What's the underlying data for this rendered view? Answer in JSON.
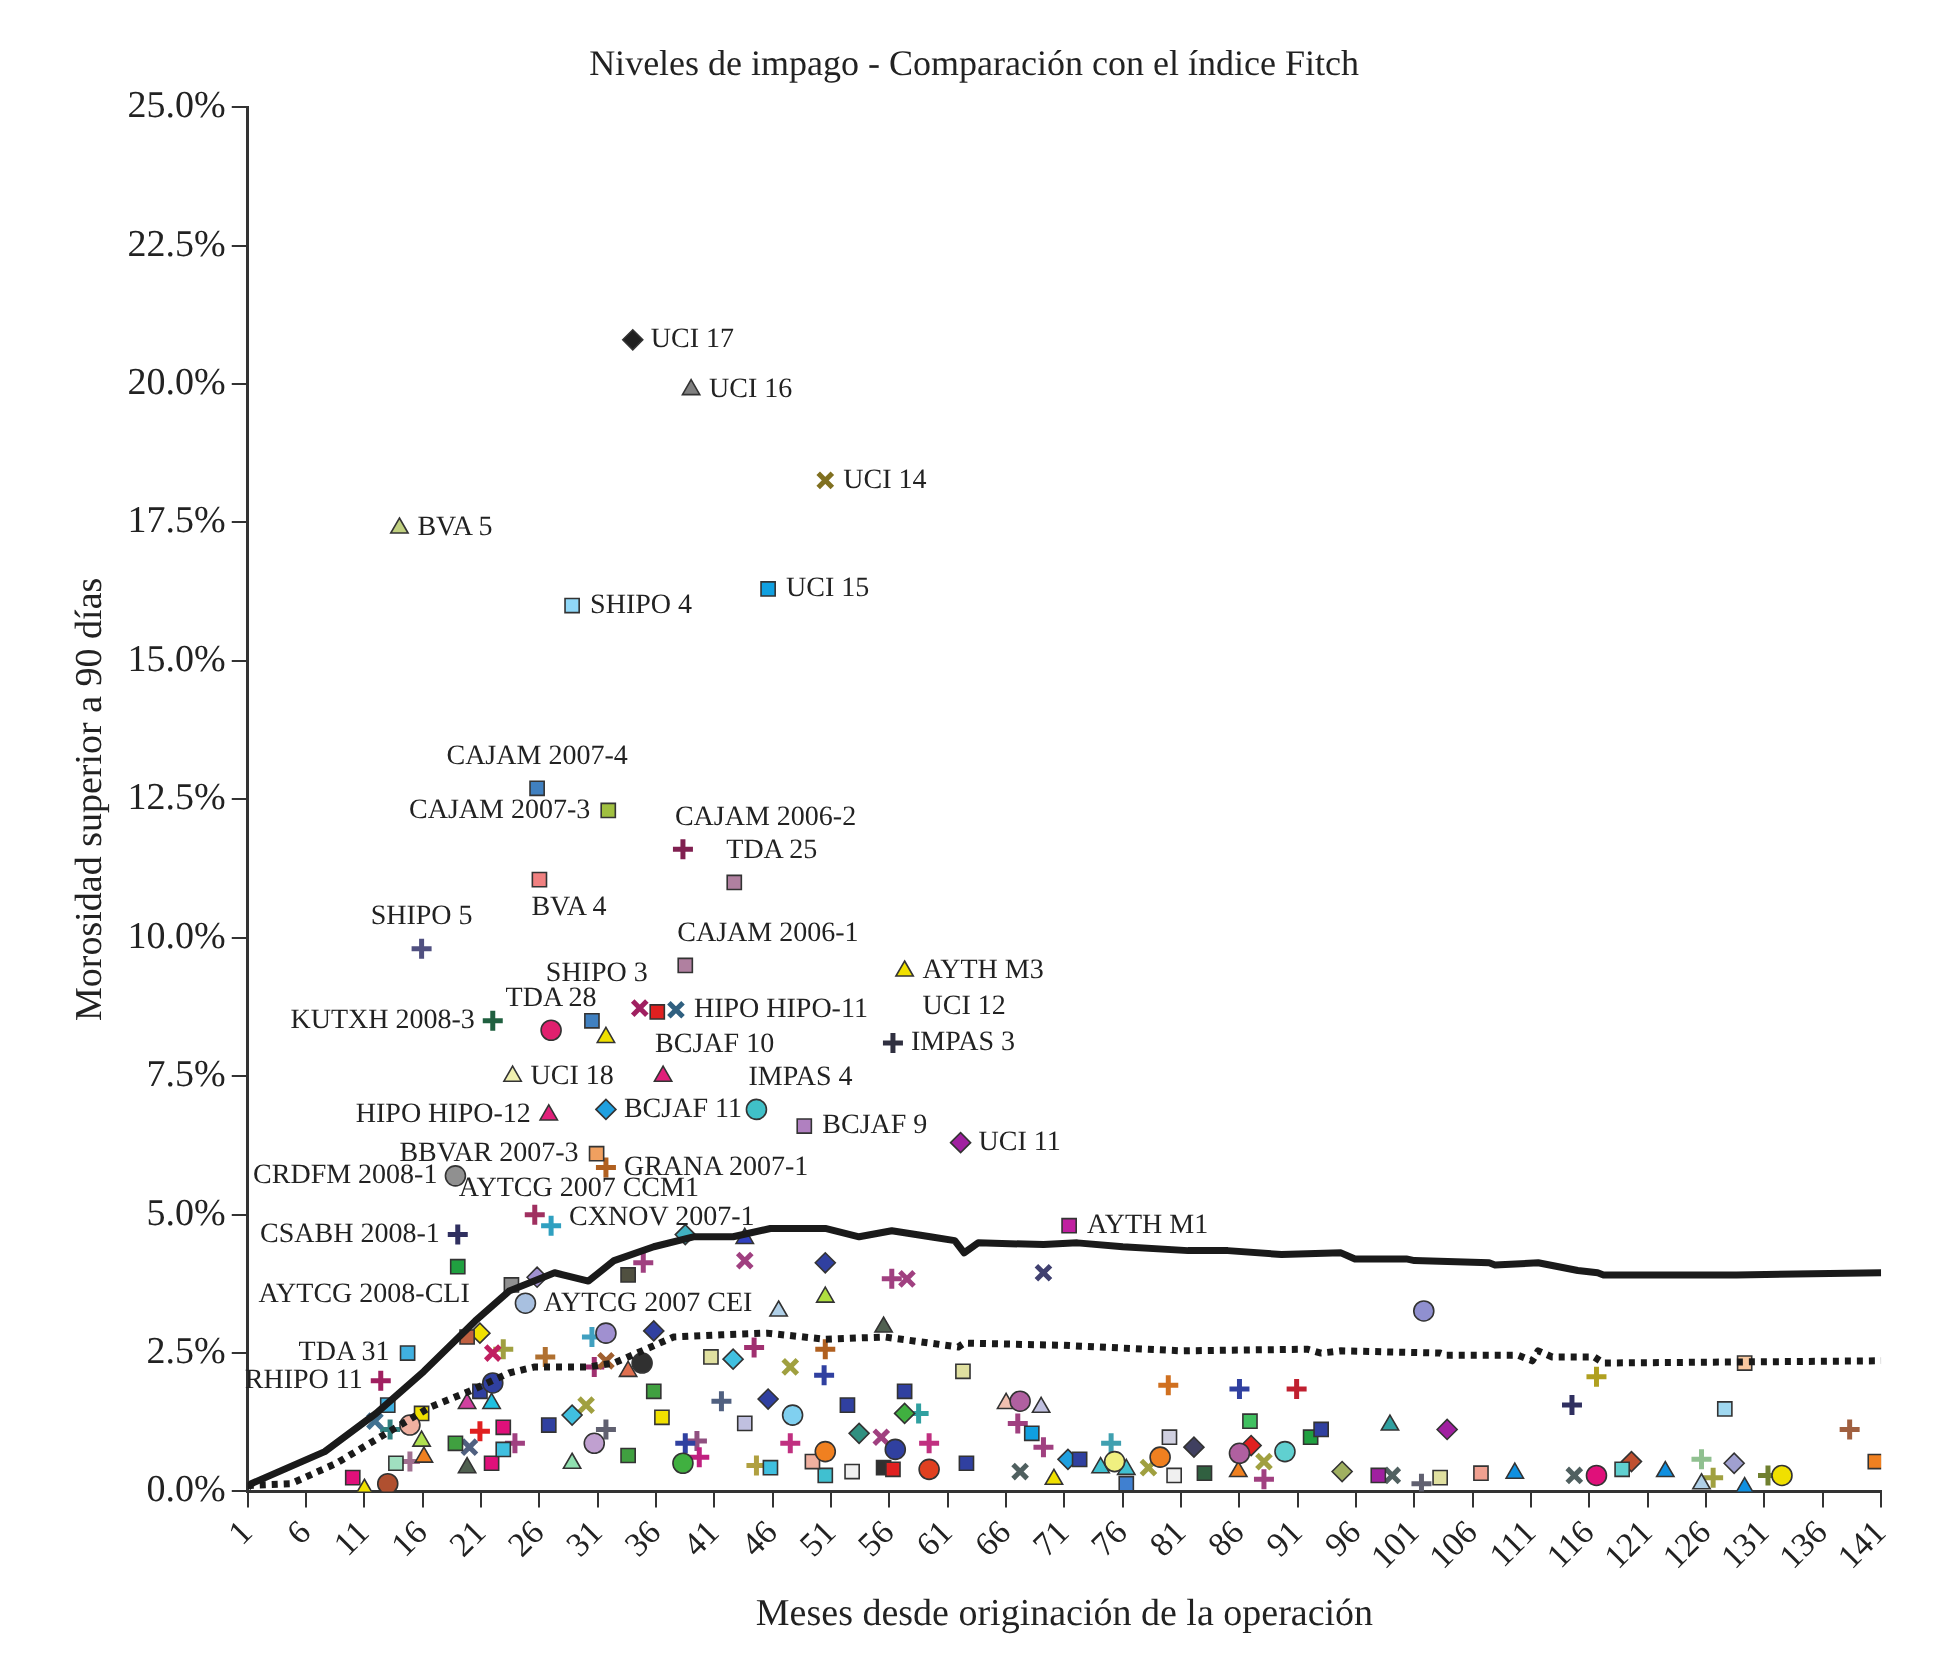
{
  "chart_data": {
    "type": "scatter",
    "title": "Niveles de impago - Comparación con el índice Fitch",
    "xlabel": "Meses desde originación de la operación",
    "ylabel": "Morosidad superior a 90 días",
    "xlim": [
      1,
      141
    ],
    "xticks": [
      1,
      6,
      11,
      16,
      21,
      26,
      31,
      36,
      41,
      46,
      51,
      56,
      61,
      66,
      71,
      76,
      81,
      86,
      91,
      96,
      101,
      106,
      111,
      116,
      121,
      126,
      131,
      136,
      141
    ],
    "ylim": [
      0,
      25
    ],
    "yticks": [
      {
        "value": 0,
        "label": "0.0%"
      },
      {
        "value": 2.5,
        "label": "2.5%"
      },
      {
        "value": 5,
        "label": "5.0%"
      },
      {
        "value": 7.5,
        "label": "7.5%"
      },
      {
        "value": 10,
        "label": "10.0%"
      },
      {
        "value": 12.5,
        "label": "12.5%"
      },
      {
        "value": 15,
        "label": "15.0%"
      },
      {
        "value": 17.5,
        "label": "17.5%"
      },
      {
        "value": 20,
        "label": "20.0%"
      },
      {
        "value": 22.5,
        "label": "22.5%"
      },
      {
        "value": 25,
        "label": "25.0%"
      }
    ],
    "grid": false,
    "legend": false,
    "series": [
      {
        "type": "line",
        "color": "#1a1a1a",
        "marker": "none",
        "line_style": "solid",
        "x": [
          1,
          1.3,
          7.6,
          12,
          16.1,
          20.5,
          23.4,
          27.3,
          30.2,
          32.4,
          35.8,
          39.2,
          42.6,
          45.8,
          50.5,
          53.4,
          56.2,
          59.5,
          61.6,
          62.4,
          63.6,
          69.2,
          72.1,
          76,
          81.6,
          85,
          89.6,
          94.7,
          95.9,
          100.3,
          101,
          107.4,
          107.9,
          111.6,
          115,
          116.7,
          117.2,
          128.6,
          141
        ],
        "values": [
          0.07,
          0.14,
          0.72,
          1.41,
          2.17,
          3.08,
          3.62,
          3.95,
          3.8,
          4.17,
          4.42,
          4.6,
          4.6,
          4.75,
          4.75,
          4.6,
          4.71,
          4.6,
          4.53,
          4.31,
          4.49,
          4.46,
          4.49,
          4.42,
          4.35,
          4.35,
          4.28,
          4.31,
          4.2,
          4.2,
          4.17,
          4.13,
          4.09,
          4.13,
          3.99,
          3.95,
          3.91,
          3.91,
          3.95
        ]
      },
      {
        "type": "line",
        "color": "#1a1a1a",
        "marker": "none",
        "line_style": "dotted",
        "x": [
          1,
          4.7,
          8.6,
          13.2,
          16.6,
          20,
          23.4,
          25.6,
          30.2,
          32.4,
          34.8,
          37.5,
          41.6,
          45.5,
          50.5,
          55.6,
          61.9,
          62.4,
          70.9,
          81.1,
          91.8,
          93,
          94.7,
          103.2,
          103.7,
          109.9,
          111.1,
          111.6,
          112.8,
          116.4,
          117.2,
          141
        ],
        "values": [
          0.11,
          0.14,
          0.51,
          1.09,
          1.52,
          1.81,
          2.14,
          2.25,
          2.25,
          2.32,
          2.54,
          2.79,
          2.83,
          2.86,
          2.75,
          2.79,
          2.61,
          2.68,
          2.64,
          2.54,
          2.57,
          2.5,
          2.54,
          2.5,
          2.46,
          2.46,
          2.36,
          2.54,
          2.43,
          2.43,
          2.32,
          2.36
        ]
      },
      {
        "type": "scatter",
        "marker": "circle",
        "x": [
          27,
          44.6,
          18.8,
          24.8,
          31.7,
          34.8,
          30.7,
          38.3,
          14.9,
          13,
          22,
          47.7,
          56.5,
          50.5,
          59.4,
          67.2,
          75.3,
          79.2,
          86,
          89.9,
          101.8,
          116.6,
          132.5
        ],
        "values": [
          8.33,
          6.9,
          5.7,
          3.4,
          2.86,
          2.32,
          0.87,
          0.51,
          1.2,
          0.14,
          1.96,
          1.38,
          0.76,
          0.72,
          0.4,
          1.63,
          0.54,
          0.62,
          0.69,
          0.72,
          3.26,
          0.29,
          0.29
        ],
        "colors": [
          "#e0206e",
          "#40c0c8",
          "#909090",
          "#a8c0e0",
          "#a090d0",
          "#303030",
          "#c0a0d0",
          "#40b040",
          "#f0b0a0",
          "#b05030",
          "#3040a0",
          "#80d0f0",
          "#3040a0",
          "#f08020",
          "#e04020",
          "#b060a0",
          "#f0f080",
          "#f08020",
          "#b060a0",
          "#60d0d0",
          "#9090d0",
          "#e0107a",
          "#f0e000"
        ]
      },
      {
        "type": "scatter",
        "marker": "triangle",
        "x": [
          39,
          14,
          57.3,
          31.7,
          23.7,
          36.6,
          26.8,
          43.6,
          46.5,
          33.6,
          15.9,
          16.1,
          11,
          19.8,
          21.9,
          19.8,
          28.8,
          50.5,
          55.5,
          66,
          69,
          70.1,
          74.1,
          76.3,
          85.9,
          98.9,
          109.6,
          122.5,
          125.6,
          129.3
        ],
        "values": [
          19.9,
          17.4,
          9.4,
          8.2,
          7.5,
          7.5,
          6.8,
          4.57,
          3.26,
          2.17,
          0.91,
          0.62,
          0.04,
          1.59,
          1.59,
          0.43,
          0.51,
          3.51,
          2.97,
          1.59,
          1.52,
          0.22,
          0.43,
          0.4,
          0.36,
          1.2,
          0.33,
          0.36,
          0.14,
          0.07
        ],
        "colors": [
          "#808080",
          "#c0d080",
          "#f0e000",
          "#f0e000",
          "#f0f0b0",
          "#e0207a",
          "#e0207a",
          "#3040c0",
          "#b0d0e8",
          "#e07050",
          "#b0e050",
          "#f08020",
          "#f0e000",
          "#d040a0",
          "#20c0e0",
          "#506050",
          "#90e0b0",
          "#b0e040",
          "#506050",
          "#f0c0b0",
          "#c0c0e0",
          "#f0e000",
          "#40c0d0",
          "#40c0d0",
          "#f08020",
          "#30a0a0",
          "#1090e0",
          "#1090e0",
          "#b0d0e8",
          "#1090e0"
        ]
      },
      {
        "type": "scatter",
        "marker": "square",
        "x": [
          28.8,
          45.6,
          25.8,
          31.9,
          42.7,
          26,
          38.5,
          30.5,
          36.1,
          48.7,
          30.9,
          71.4,
          19,
          14.7,
          23.6,
          33.6,
          19.8,
          40.7,
          35.8,
          43.6,
          36.5,
          26.8,
          33.6,
          45.8,
          15.9,
          13,
          13.7,
          10,
          21.9,
          18.8,
          22.9,
          20.9,
          22.9,
          62.3,
          52.4,
          57.3,
          50.5,
          49.4,
          52.8,
          55.5,
          56.3,
          62.6,
          68.2,
          72.3,
          76.3,
          80,
          80.4,
          83,
          86.9,
          92.1,
          93,
          129.3,
          127.6,
          97.9,
          103.2,
          106.7,
          118.8,
          140.5
        ],
        "values": [
          16,
          16.3,
          12.7,
          12.3,
          11,
          11.05,
          9.5,
          8.5,
          8.66,
          6.6,
          6.1,
          4.8,
          4.06,
          2.5,
          3.73,
          3.91,
          2.79,
          2.43,
          1.81,
          1.23,
          1.34,
          1.2,
          0.65,
          0.43,
          1.41,
          1.56,
          0.51,
          0.25,
          0.51,
          0.87,
          0.76,
          1.81,
          1.16,
          2.17,
          1.56,
          1.81,
          0.29,
          0.54,
          0.36,
          0.43,
          0.4,
          0.51,
          1.05,
          0.58,
          0.14,
          0.98,
          0.29,
          0.33,
          1.27,
          0.98,
          1.12,
          2.32,
          1.49,
          0.29,
          0.25,
          0.33,
          0.4,
          0.54
        ],
        "colors": [
          "#90d8f8",
          "#10a0e0",
          "#4080c0",
          "#a0c040",
          "#b080a0",
          "#f08080",
          "#b080a0",
          "#4080c0",
          "#e02020",
          "#b080c0",
          "#f0a060",
          "#c020a0",
          "#20a040",
          "#40b0e0",
          "#909090",
          "#505040",
          "#c06040",
          "#e0e0a0",
          "#40a040",
          "#c0c0e0",
          "#f0e000",
          "#3040a0",
          "#40a040",
          "#40c0e0",
          "#f0e000",
          "#40b0e0",
          "#a0e0c0",
          "#e0107a",
          "#e0107a",
          "#40a040",
          "#40c0e0",
          "#3040a0",
          "#e0107a",
          "#e0e0a0",
          "#3040a0",
          "#3040a0",
          "#40c0d0",
          "#f0b0a0",
          "#f0f0f0",
          "#303030",
          "#e02020",
          "#3040a0",
          "#10a0e0",
          "#3040a0",
          "#4080d0",
          "#d0d0e0",
          "#f0f0f0",
          "#306040",
          "#40c060",
          "#20a040",
          "#3040a0",
          "#f8c8a0",
          "#a0d8f0",
          "#a020a0",
          "#e0e0a0",
          "#f0a090",
          "#60d0d0",
          "#f08020"
        ]
      },
      {
        "type": "scatter",
        "marker": "diamond",
        "x": [
          34,
          31.7,
          62.1,
          25.8,
          38.5,
          20.9,
          35.8,
          42.6,
          45.6,
          28.8,
          50.5,
          57.3,
          53.4,
          71.3,
          82.1,
          87,
          94.8,
          103.8,
          119.6,
          128.4
        ],
        "values": [
          20.8,
          6.9,
          6.3,
          3.87,
          4.64,
          2.86,
          2.9,
          2.39,
          1.67,
          1.38,
          4.13,
          1.41,
          1.05,
          0.58,
          0.8,
          0.83,
          0.36,
          1.12,
          0.54,
          0.51
        ],
        "colors": [
          "#202020",
          "#20a0e0",
          "#a020a0",
          "#a090d0",
          "#40b0c0",
          "#f0e000",
          "#3040a0",
          "#40c0e0",
          "#3040a0",
          "#40c0e0",
          "#3040a0",
          "#40b040",
          "#309080",
          "#20a0e0",
          "#404060",
          "#e02020",
          "#a0b060",
          "#a020a0",
          "#c05030",
          "#a0a0d0"
        ]
      },
      {
        "type": "scatter",
        "marker": "x",
        "x": [
          50.5,
          34.6,
          37.7,
          43.6,
          22,
          31.7,
          30,
          11.9,
          20,
          57.5,
          69.2,
          47.5,
          55.3,
          67.2,
          78.2,
          88.1,
          99.1,
          114.7
        ],
        "values": [
          18.26,
          8.73,
          8.7,
          4.17,
          2.5,
          2.36,
          1.56,
          1.27,
          0.8,
          3.84,
          3.95,
          2.25,
          0.98,
          0.36,
          0.43,
          0.54,
          0.29,
          0.29
        ],
        "colors": [
          "#807020",
          "#a02060",
          "#306080",
          "#a04080",
          "#c02060",
          "#a06030",
          "#a0a040",
          "#407090",
          "#506080",
          "#a04080",
          "#404070",
          "#a0a040",
          "#a04080",
          "#506060",
          "#a0a040",
          "#a0a040",
          "#506060",
          "#506060"
        ]
      },
      {
        "type": "scatter",
        "marker": "cross",
        "x": [
          56.3,
          25.6,
          19,
          22.9,
          30.7,
          44.4,
          41.6,
          31.7,
          38.5,
          13.2,
          20.9,
          50.4,
          59.4,
          47.5,
          75,
          79.9,
          86,
          90.9,
          116.6,
          126.6,
          138.3
        ],
        "values": [
          8.1,
          5,
          4.64,
          2.57,
          2.25,
          2.6,
          1.63,
          1.12,
          0.87,
          1.12,
          1.09,
          2.1,
          0.87,
          0.87,
          0.87,
          1.92,
          1.85,
          1.85,
          2.07,
          0.25,
          1.12
        ],
        "colors": [
          "#303040",
          "#a03060",
          "#303060",
          "#a0a040",
          "#a03070",
          "#a03070",
          "#506080",
          "#606070",
          "#3040a0",
          "#308080",
          "#e02020",
          "#3040a0",
          "#c03080",
          "#c03080",
          "#40a0b0",
          "#d07020",
          "#3040a0",
          "#c02030",
          "#b0a020",
          "#a0a040",
          "#a06040"
        ]
      },
      {
        "type": "scatter",
        "marker": "cross",
        "x": [
          38.3,
          15.9,
          22,
          31.7,
          27,
          12.4,
          34.9,
          26.5,
          30.5,
          39.5,
          39.7,
          44.6,
          14.9,
          23.9,
          56.2,
          50.5,
          58.5,
          67,
          69.2,
          88.1,
          101.6,
          114.5,
          125.6,
          131.3
        ],
        "values": [
          11.6,
          9.8,
          8.5,
          5.85,
          4.8,
          2,
          4.13,
          2.43,
          2.79,
          0.91,
          0.62,
          0.47,
          0.54,
          0.87,
          3.84,
          2.57,
          1.41,
          1.23,
          0.8,
          0.22,
          0.14,
          1.56,
          0.58,
          0.29
        ],
        "colors": [
          "#802050",
          "#505080",
          "#206040",
          "#b06020",
          "#30a0c0",
          "#a02060",
          "#a04080",
          "#b07030",
          "#40a0c0",
          "#905080",
          "#c02080",
          "#b0a040",
          "#a07090",
          "#a04080",
          "#a04080",
          "#b06020",
          "#30a0a0",
          "#a04080",
          "#a04080",
          "#a04080",
          "#606070",
          "#303060",
          "#90c090",
          "#708030"
        ]
      }
    ],
    "annotations": [
      {
        "text": "UCI 17",
        "x": 34,
        "y": 20.8
      },
      {
        "text": "UCI 16",
        "x": 39,
        "y": 19.9
      },
      {
        "text": "UCI 14",
        "x": 50.5,
        "y": 18.26
      },
      {
        "text": "BVA 5",
        "x": 14,
        "y": 17.4
      },
      {
        "text": "SHIPO 4",
        "x": 28.8,
        "y": 16
      },
      {
        "text": "UCI 15",
        "x": 45.6,
        "y": 16.3
      },
      {
        "text": "CAJAM 2007-4",
        "x": 25.8,
        "y": 12.7
      },
      {
        "text": "CAJAM 2007-3",
        "x": 31.9,
        "y": 12.3
      },
      {
        "text": "CAJAM 2006-2",
        "x": 38.3,
        "y": 11.6
      },
      {
        "text": "TDA 25",
        "x": 42.7,
        "y": 11
      },
      {
        "text": "BVA 4",
        "x": 26,
        "y": 11.05
      },
      {
        "text": "SHIPO 5",
        "x": 15.9,
        "y": 9.8
      },
      {
        "text": "CAJAM 2006-1",
        "x": 38.5,
        "y": 9.5
      },
      {
        "text": "AYTH M3",
        "x": 57.3,
        "y": 9.4
      },
      "UCI 12",
      {
        "text": "IMPAS 3",
        "x": 56.3,
        "y": 8.1
      },
      {
        "text": "SHIPO 3",
        "x": 34.6,
        "y": 8.73
      },
      {
        "text": "HIPO HIPO-11",
        "x": 37.7,
        "y": 8.7
      },
      {
        "text": "TDA 28",
        "x": 27,
        "y": 8.33
      },
      {
        "text": "KUTXH 2008-3",
        "x": 22,
        "y": 8.5
      },
      {
        "text": "UCI 18",
        "x": 23.7,
        "y": 7.5
      },
      {
        "text": "BCJAF 10",
        "x": 36.6,
        "y": 7.5
      },
      {
        "text": "HIPO HIPO-12",
        "x": 26.8,
        "y": 6.8
      },
      {
        "text": "BCJAF 11",
        "x": 31.7,
        "y": 6.9
      },
      {
        "text": "IMPAS 4",
        "x": 44.6,
        "y": 6.9
      },
      {
        "text": "BCJAF 9",
        "x": 48.7,
        "y": 6.6
      },
      {
        "text": "UCI 11",
        "x": 62.1,
        "y": 6.3
      },
      {
        "text": "BBVAR 2007-3",
        "x": 30.9,
        "y": 6.1
      },
      {
        "text": "GRANA 2007-1",
        "x": 31.7,
        "y": 5.85
      },
      {
        "text": "CRDFM 2008-1",
        "x": 18.8,
        "y": 5.7
      },
      {
        "text": "AYTCG 2007 CCM1",
        "x": 25.6,
        "y": 5
      },
      {
        "text": "CXNOV 2007-1",
        "x": 27,
        "y": 4.8
      },
      {
        "text": "CSABH 2008-1",
        "x": 19,
        "y": 4.64
      },
      {
        "text": "AYTH M1",
        "x": 71.4,
        "y": 4.8
      },
      {
        "text": "AYTCG 2008-CLI",
        "x": 19,
        "y": 4.06
      },
      {
        "text": "AYTCG 2007 CEI",
        "x": 24.8,
        "y": 3.4
      },
      {
        "text": "TDA 31",
        "x": 14.7,
        "y": 2.5
      },
      {
        "text": "RHIPO 11",
        "x": 12.4,
        "y": 2
      }
    ]
  }
}
